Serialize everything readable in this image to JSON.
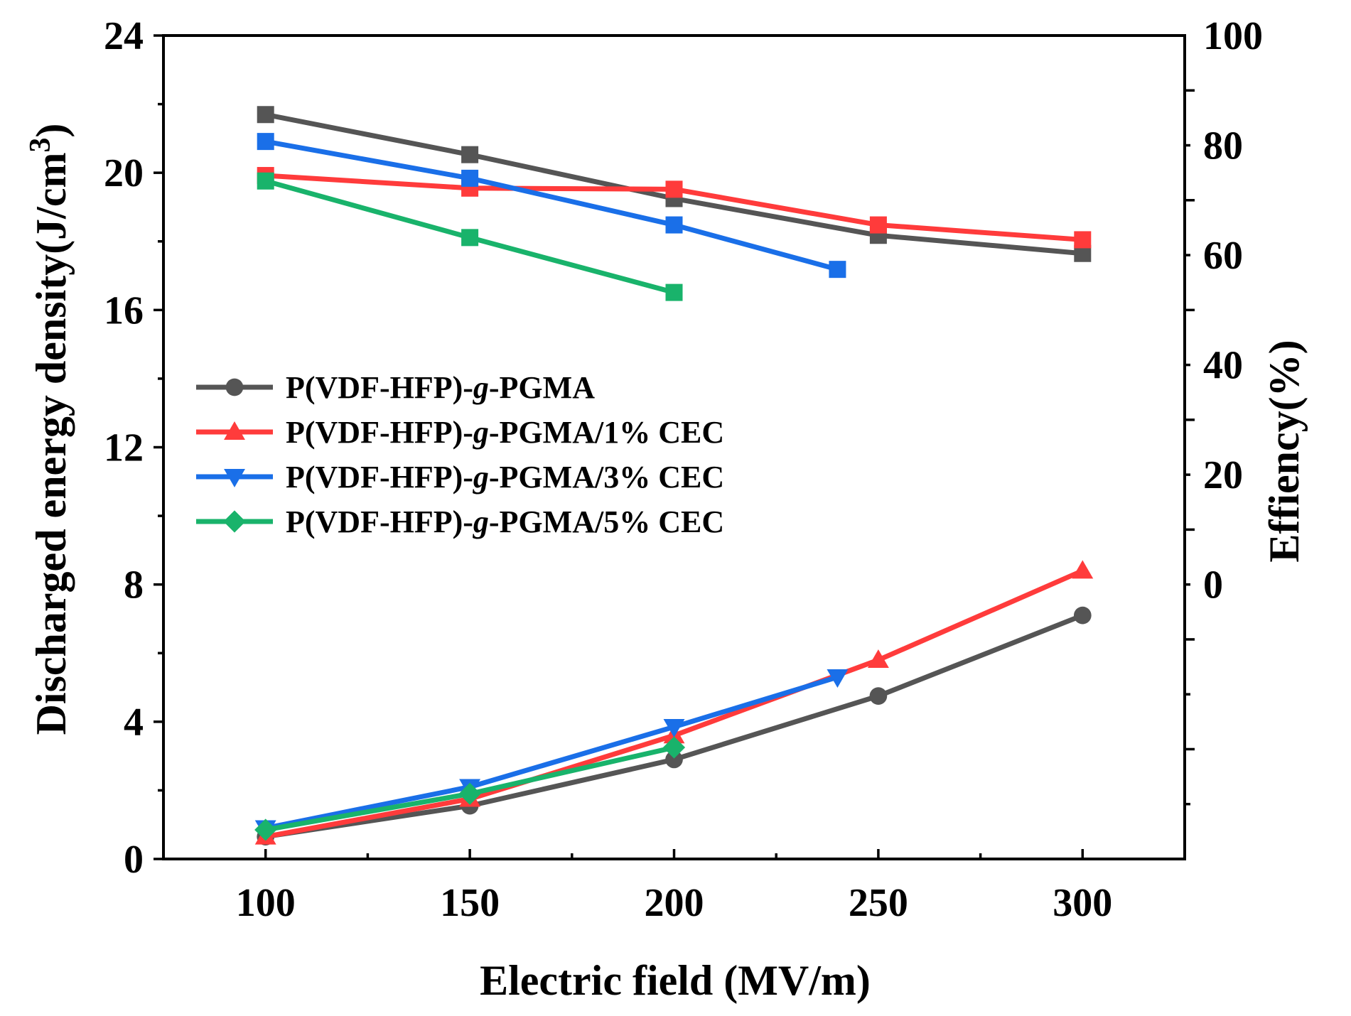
{
  "chart_data": {
    "type": "line",
    "xlabel": "Electric field (MV/m)",
    "ylabel": "Discharged energy density(J/cm",
    "ylabel_superscript": "3",
    "ylabel_suffix": ")",
    "y2label": "Effiency(%)",
    "xlim": [
      75,
      325
    ],
    "ylim": [
      0,
      24
    ],
    "y2lim": [
      -50,
      100
    ],
    "xticks": [
      100,
      150,
      200,
      250,
      300
    ],
    "yticks": [
      0,
      4,
      8,
      12,
      16,
      20,
      24
    ],
    "y2ticks": [
      0,
      20,
      40,
      60,
      80,
      100
    ],
    "grid": false,
    "legend_position": "middle-left",
    "series": [
      {
        "name": "P(VDF-HFP)-g-PGMA",
        "name_parts": [
          "P(VDF-HFP)-",
          "g",
          "-PGMA"
        ],
        "color": "#555555",
        "energy_marker": "circle",
        "energy": {
          "x": [
            100,
            150,
            200,
            250,
            300
          ],
          "y": [
            0.65,
            1.55,
            2.9,
            4.75,
            7.1
          ]
        },
        "efficiency": {
          "x": [
            100,
            150,
            200,
            250,
            300
          ],
          "y": [
            85.6,
            78.3,
            70.3,
            63.6,
            60.3
          ]
        }
      },
      {
        "name": "P(VDF-HFP)-g-PGMA/1% CEC",
        "name_parts": [
          "P(VDF-HFP)-",
          "g",
          "-PGMA/1% CEC"
        ],
        "color": "#ff3b3b",
        "energy_marker": "triangle-up",
        "energy": {
          "x": [
            100,
            150,
            200,
            250,
            300
          ],
          "y": [
            0.65,
            1.75,
            3.6,
            5.8,
            8.4
          ]
        },
        "efficiency": {
          "x": [
            100,
            150,
            200,
            250,
            300
          ],
          "y": [
            74.5,
            72.2,
            72.0,
            65.5,
            62.8
          ]
        }
      },
      {
        "name": "P(VDF-HFP)-g-PGMA/3% CEC",
        "name_parts": [
          "P(VDF-HFP)-",
          "g",
          "-PGMA/3% CEC"
        ],
        "color": "#1a6fe8",
        "energy_marker": "triangle-down",
        "energy": {
          "x": [
            100,
            150,
            200,
            240
          ],
          "y": [
            0.9,
            2.1,
            3.85,
            5.3
          ]
        },
        "efficiency": {
          "x": [
            100,
            150,
            200,
            240
          ],
          "y": [
            80.7,
            74.0,
            65.5,
            57.4
          ]
        }
      },
      {
        "name": "P(VDF-HFP)-g-PGMA/5% CEC",
        "name_parts": [
          "P(VDF-HFP)-",
          "g",
          "-PGMA/5% CEC"
        ],
        "color": "#19b36b",
        "energy_marker": "diamond",
        "energy": {
          "x": [
            100,
            150,
            200
          ],
          "y": [
            0.85,
            1.9,
            3.25
          ]
        },
        "efficiency": {
          "x": [
            100,
            150,
            200
          ],
          "y": [
            73.5,
            63.2,
            53.2
          ]
        }
      }
    ]
  }
}
